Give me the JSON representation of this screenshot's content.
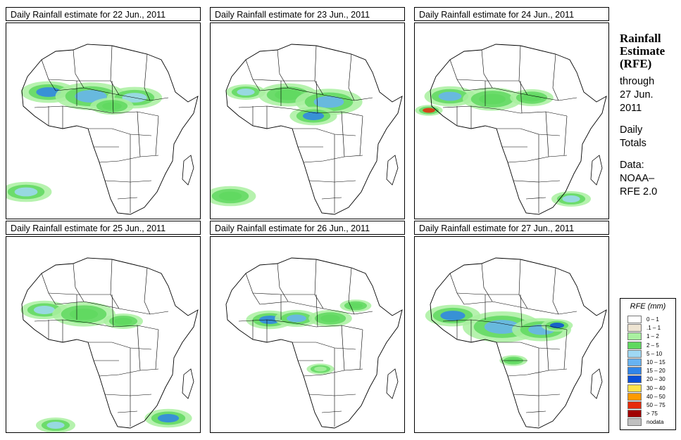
{
  "panels": [
    {
      "title": "Daily Rainfall estimate for  22 Jun., 2011",
      "variant": 0
    },
    {
      "title": "Daily Rainfall estimate for  23 Jun., 2011",
      "variant": 1
    },
    {
      "title": "Daily Rainfall estimate for  24 Jun., 2011",
      "variant": 2
    },
    {
      "title": "Daily Rainfall estimate for  25 Jun., 2011",
      "variant": 3
    },
    {
      "title": "Daily Rainfall estimate for  26 Jun., 2011",
      "variant": 4
    },
    {
      "title": "Daily Rainfall estimate for  27 Jun., 2011",
      "variant": 5
    }
  ],
  "side": {
    "title_line1": "Rainfall",
    "title_line2": "Estimate",
    "title_line3": "(RFE)",
    "through": "through",
    "date_line1": "27 Jun.",
    "date_line2": "2011",
    "daily": "Daily",
    "totals": "Totals",
    "data_label": "Data:",
    "source_line1": "NOAA–",
    "source_line2": "RFE 2.0"
  },
  "legend": {
    "title": "RFE (mm)",
    "items": [
      {
        "label": "0 – 1",
        "color": "#ffffff"
      },
      {
        "label": ".1 – 1",
        "color": "#eee4d2"
      },
      {
        "label": "1 – 2",
        "color": "#a9f0a0"
      },
      {
        "label": "2 – 5",
        "color": "#5fd85f"
      },
      {
        "label": "5 – 10",
        "color": "#9fd8f4"
      },
      {
        "label": "10 – 15",
        "color": "#67b3f2"
      },
      {
        "label": "15 – 20",
        "color": "#2f84e8"
      },
      {
        "label": "20 – 30",
        "color": "#0a4ed8"
      },
      {
        "label": "30 – 40",
        "color": "#ffe24a"
      },
      {
        "label": "40 – 50",
        "color": "#ff9a00"
      },
      {
        "label": "50 – 75",
        "color": "#e62a0a"
      },
      {
        "label": "> 75",
        "color": "#a00000"
      },
      {
        "label": "nodata",
        "color": "#c0c0c0"
      }
    ]
  }
}
